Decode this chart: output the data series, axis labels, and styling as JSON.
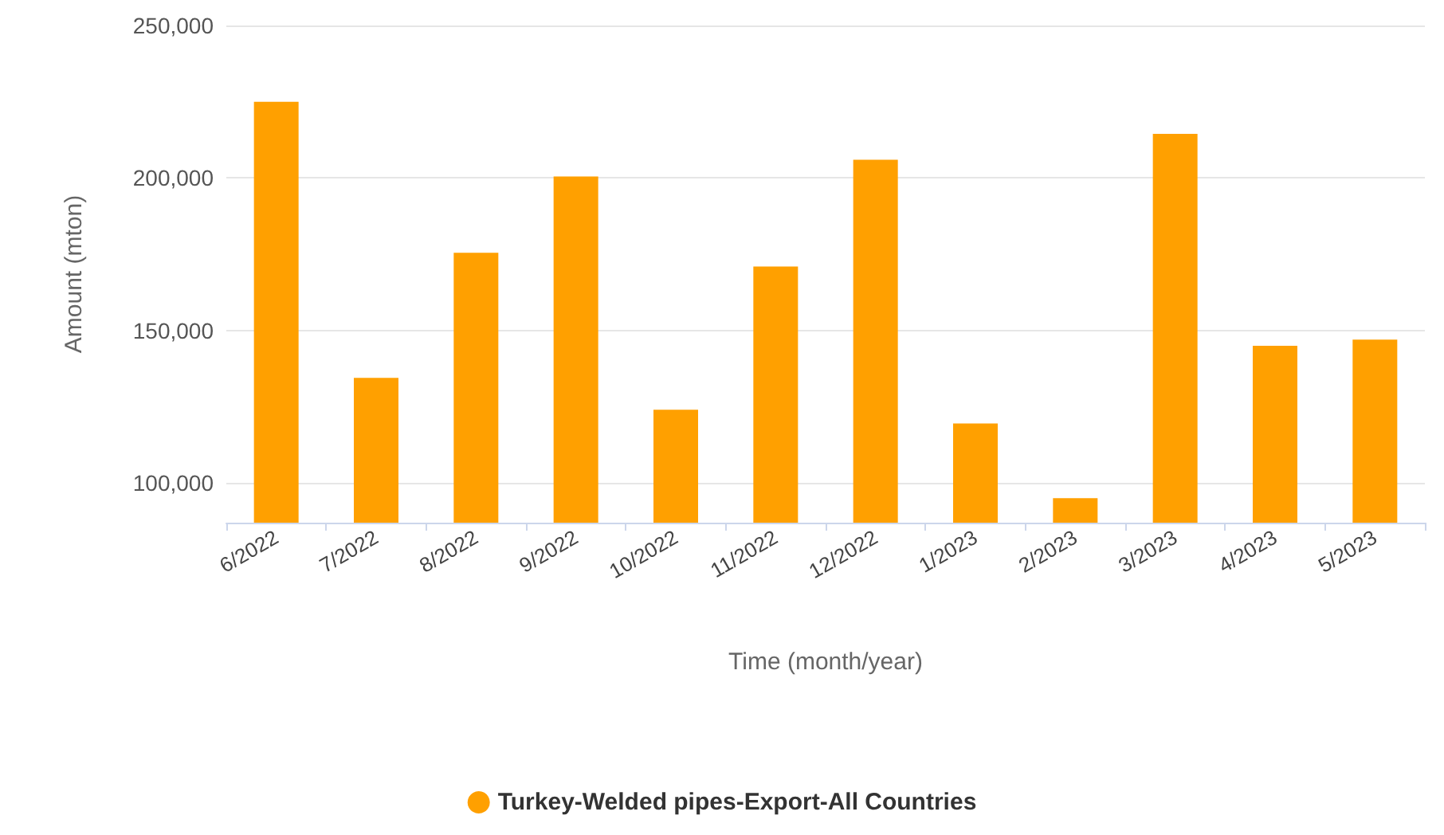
{
  "chart_data": {
    "type": "bar",
    "xlabel": "Time (month/year)",
    "ylabel": "Amount (mton)",
    "categories": [
      "6/2022",
      "7/2022",
      "8/2022",
      "9/2022",
      "10/2022",
      "11/2022",
      "12/2022",
      "1/2023",
      "2/2023",
      "3/2023",
      "4/2023",
      "5/2023"
    ],
    "series": [
      {
        "name": "Turkey-Welded pipes-Export-All Countries",
        "color": "#ffa000",
        "values": [
          225000,
          134500,
          175500,
          200500,
          124000,
          171000,
          206000,
          119500,
          95000,
          214500,
          145000,
          147000
        ]
      }
    ],
    "ylim": [
      87000,
      250000
    ],
    "yticks": [
      {
        "value": 100000,
        "label": "100,000"
      },
      {
        "value": 150000,
        "label": "150,000"
      },
      {
        "value": 200000,
        "label": "200,000"
      },
      {
        "value": 250000,
        "label": "250,000"
      }
    ],
    "grid": "y",
    "legend": "bottom"
  }
}
